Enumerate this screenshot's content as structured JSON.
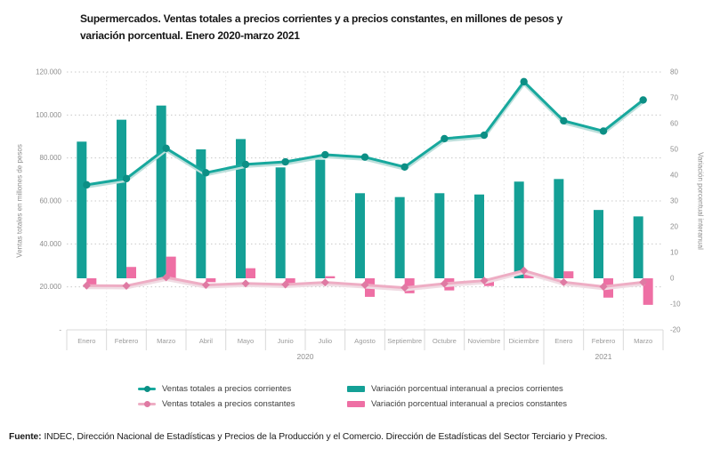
{
  "title": {
    "lines": [
      "Supermercados. Ventas totales a precios corrientes y a precios constantes, en millones de pesos y",
      "variación porcentual. Enero 2020-marzo 2021"
    ]
  },
  "footer": {
    "label": "Fuente:",
    "text": "INDEC, Dirección Nacional de Estadísticas y Precios de la Producción y el Comercio. Dirección de Estadísticas del Sector Terciario y Precios."
  },
  "colors": {
    "teal": "#14a096",
    "teal_marker": "#0c8f85",
    "pink_bar": "#ee6fa4",
    "pink_line": "#eeadc4",
    "pink_marker": "#df7aa3",
    "grid": "#c9c9c9",
    "grid_vertical": "#e4e4e4",
    "axis_text": "#8e8e8e",
    "table_border": "#d9d9d9"
  },
  "chart_data": {
    "type": "combo",
    "subtype": "grouped-bars-with-lines",
    "grid": {
      "horizontal": "dotted",
      "vertical": "dotted-light"
    },
    "legend_position": "bottom",
    "categories": [
      "Enero",
      "Febrero",
      "Marzo",
      "Abril",
      "Mayo",
      "Junio",
      "Julio",
      "Agosto",
      "Septiembre",
      "Octubre",
      "Noviembre",
      "Diciembre",
      "Enero",
      "Febrero",
      "Marzo"
    ],
    "year_groups": [
      {
        "label": "2020",
        "span": 12
      },
      {
        "label": "2021",
        "span": 3
      }
    ],
    "left_axis": {
      "label": "Ventas totales en millones de pesos",
      "min": 0,
      "max": 120000,
      "ticks": [
        {
          "label": "120.000",
          "value": 120000
        },
        {
          "label": "100.000",
          "value": 100000
        },
        {
          "label": "80.000",
          "value": 80000
        },
        {
          "label": "60.000",
          "value": 60000
        },
        {
          "label": "40.000",
          "value": 40000
        },
        {
          "label": "20.000",
          "value": 20000
        },
        {
          "label": "-",
          "value": 0
        }
      ]
    },
    "right_axis": {
      "label": "Variación porcentual interanual",
      "min": -20,
      "max": 80,
      "ticks": [
        {
          "label": "80",
          "value": 80
        },
        {
          "label": "70",
          "value": 70
        },
        {
          "label": "60",
          "value": 60
        },
        {
          "label": "50",
          "value": 50
        },
        {
          "label": "40",
          "value": 40
        },
        {
          "label": "30",
          "value": 30
        },
        {
          "label": "20",
          "value": 20
        },
        {
          "label": "10",
          "value": 10
        },
        {
          "label": "0",
          "value": 0
        },
        {
          "label": "-10",
          "value": -10
        },
        {
          "label": "-20",
          "value": -20
        }
      ]
    },
    "series": [
      {
        "name": "Ventas totales a precios corrientes",
        "type": "line",
        "axis": "left",
        "color": "#17a89d",
        "marker_color": "#0c8f85",
        "halo_color": "#bcdfdb",
        "values": [
          67500,
          70400,
          84500,
          73100,
          77000,
          78200,
          81500,
          80400,
          75800,
          89000,
          90600,
          115500,
          97300,
          92500,
          107000
        ]
      },
      {
        "name": "Ventas totales a precios constantes",
        "type": "line",
        "axis": "left",
        "color": "#eeadc4",
        "marker_color": "#df7aa3",
        "halo_color": "#f0dbe3",
        "values": [
          20600,
          20500,
          24400,
          20900,
          21600,
          21100,
          22100,
          20900,
          19600,
          21500,
          22900,
          27600,
          22200,
          20100,
          22200
        ]
      },
      {
        "name": "Variación porcentual interanual a precios corrientes",
        "type": "bar",
        "axis": "right",
        "color": "#14a096",
        "values": [
          53,
          61.5,
          67,
          50,
          54,
          43,
          46,
          33,
          31.5,
          33,
          32.5,
          37.5,
          38.5,
          26.5,
          24
        ]
      },
      {
        "name": "Variación porcentual interanual a precios constantes",
        "type": "bar",
        "axis": "right",
        "color": "#ee6fa4",
        "values": [
          -2.5,
          4.4,
          8.4,
          -1.5,
          3.9,
          -2,
          0.8,
          -7.2,
          -5.8,
          -4.7,
          -3,
          1.6,
          2.7,
          -7.5,
          -10.3
        ]
      }
    ]
  }
}
